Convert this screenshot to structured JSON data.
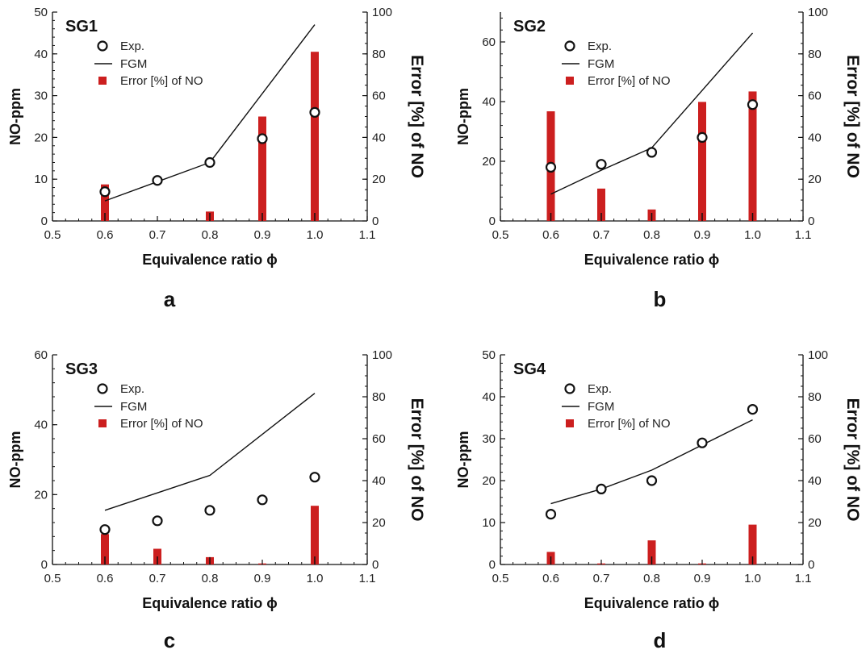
{
  "colors": {
    "bar": "#cc1f1f",
    "line": "#111111",
    "marker_edge": "#111111",
    "marker_fill": "#ffffff"
  },
  "legend": {
    "exp": "Exp.",
    "fgm": "FGM",
    "error": "Error [%] of NO"
  },
  "chart_data": [
    {
      "type": "bar+line+scatter",
      "title": "SG1",
      "panel_letter": "a",
      "xlabel": "Equivalence ratio ϕ",
      "ylabel": "NO-ppm",
      "y2label": "Error [%] of NO",
      "xlim": [
        0.5,
        1.1
      ],
      "ylim": [
        0,
        50
      ],
      "y2lim": [
        0,
        100
      ],
      "xticks": [
        "0.5",
        "0.6",
        "0.7",
        "0.8",
        "0.9",
        "1.0",
        "1.1"
      ],
      "yticks": [
        "0",
        "10",
        "20",
        "30",
        "40",
        "50"
      ],
      "y2ticks": [
        "0",
        "20",
        "40",
        "60",
        "80",
        "100"
      ],
      "series": [
        {
          "name": "Exp.",
          "kind": "scatter",
          "x": [
            0.6,
            0.7,
            0.8,
            0.9,
            1.0
          ],
          "y": [
            7,
            9.7,
            14,
            19.7,
            26
          ]
        },
        {
          "name": "FGM",
          "kind": "line",
          "x": [
            0.6,
            0.7,
            0.8,
            1.0
          ],
          "y": [
            4.8,
            9.4,
            14,
            47
          ]
        },
        {
          "name": "Error [%] of NO",
          "kind": "bar",
          "axis": "right",
          "x": [
            0.6,
            0.7,
            0.8,
            0.9,
            1.0
          ],
          "y": [
            17.5,
            0,
            4.5,
            50,
            81
          ]
        }
      ]
    },
    {
      "type": "bar+line+scatter",
      "title": "SG2",
      "panel_letter": "b",
      "xlabel": "Equivalence ratio ϕ",
      "ylabel": "NO-ppm",
      "y2label": "Error [%] of NO",
      "xlim": [
        0.5,
        1.1
      ],
      "ylim": [
        0,
        70
      ],
      "y2lim": [
        0,
        100
      ],
      "xticks": [
        "0.5",
        "0.6",
        "0.7",
        "0.8",
        "0.9",
        "1.0",
        "1.1"
      ],
      "yticks": [
        "0",
        "20",
        "40",
        "60"
      ],
      "y2ticks": [
        "0",
        "20",
        "40",
        "60",
        "80",
        "100"
      ],
      "series": [
        {
          "name": "Exp.",
          "kind": "scatter",
          "x": [
            0.6,
            0.7,
            0.8,
            0.9,
            1.0
          ],
          "y": [
            18,
            19,
            23,
            28,
            39
          ]
        },
        {
          "name": "FGM",
          "kind": "line",
          "x": [
            0.6,
            0.7,
            0.8,
            1.0
          ],
          "y": [
            9,
            17,
            24.5,
            63
          ]
        },
        {
          "name": "Error [%] of NO",
          "kind": "bar",
          "axis": "right",
          "x": [
            0.6,
            0.7,
            0.8,
            0.9,
            1.0
          ],
          "y": [
            52.5,
            15.5,
            5.5,
            57,
            62
          ]
        }
      ]
    },
    {
      "type": "bar+line+scatter",
      "title": "SG3",
      "panel_letter": "c",
      "xlabel": "Equivalence ratio ϕ",
      "ylabel": "NO-ppm",
      "y2label": "Error [%] of NO",
      "xlim": [
        0.5,
        1.1
      ],
      "ylim": [
        0,
        60
      ],
      "y2lim": [
        0,
        100
      ],
      "xticks": [
        "0.5",
        "0.6",
        "0.7",
        "0.8",
        "0.9",
        "1.0",
        "1.1"
      ],
      "yticks": [
        "0",
        "20",
        "40",
        "60"
      ],
      "y2ticks": [
        "0",
        "20",
        "40",
        "60",
        "80",
        "100"
      ],
      "series": [
        {
          "name": "Exp.",
          "kind": "scatter",
          "x": [
            0.6,
            0.7,
            0.8,
            0.9,
            1.0
          ],
          "y": [
            10,
            12.5,
            15.5,
            18.5,
            25
          ]
        },
        {
          "name": "FGM",
          "kind": "line",
          "x": [
            0.6,
            0.7,
            0.8,
            1.0
          ],
          "y": [
            15.5,
            20.5,
            25.5,
            49
          ]
        },
        {
          "name": "Error [%] of NO",
          "kind": "bar",
          "axis": "right",
          "x": [
            0.6,
            0.7,
            0.8,
            0.9,
            1.0
          ],
          "y": [
            14.5,
            7.5,
            3.5,
            0.5,
            28
          ]
        }
      ]
    },
    {
      "type": "bar+line+scatter",
      "title": "SG4",
      "panel_letter": "d",
      "xlabel": "Equivalence ratio ϕ",
      "ylabel": "NO-ppm",
      "y2label": "Error [%] of NO",
      "xlim": [
        0.5,
        1.1
      ],
      "ylim": [
        0,
        50
      ],
      "y2lim": [
        0,
        100
      ],
      "xticks": [
        "0.5",
        "0.6",
        "0.7",
        "0.8",
        "0.9",
        "1.0",
        "1.1"
      ],
      "yticks": [
        "0",
        "10",
        "20",
        "30",
        "40",
        "50"
      ],
      "y2ticks": [
        "0",
        "20",
        "40",
        "60",
        "80",
        "100"
      ],
      "series": [
        {
          "name": "Exp.",
          "kind": "scatter",
          "x": [
            0.6,
            0.7,
            0.8,
            0.9,
            1.0
          ],
          "y": [
            12,
            18,
            20,
            29,
            37
          ]
        },
        {
          "name": "FGM",
          "kind": "line",
          "x": [
            0.6,
            0.7,
            0.8,
            1.0
          ],
          "y": [
            14.5,
            18,
            22.5,
            34.5
          ]
        },
        {
          "name": "Error [%] of NO",
          "kind": "bar",
          "axis": "right",
          "x": [
            0.6,
            0.7,
            0.8,
            0.9,
            1.0
          ],
          "y": [
            6,
            0.5,
            11.5,
            0.5,
            19
          ]
        }
      ]
    }
  ]
}
